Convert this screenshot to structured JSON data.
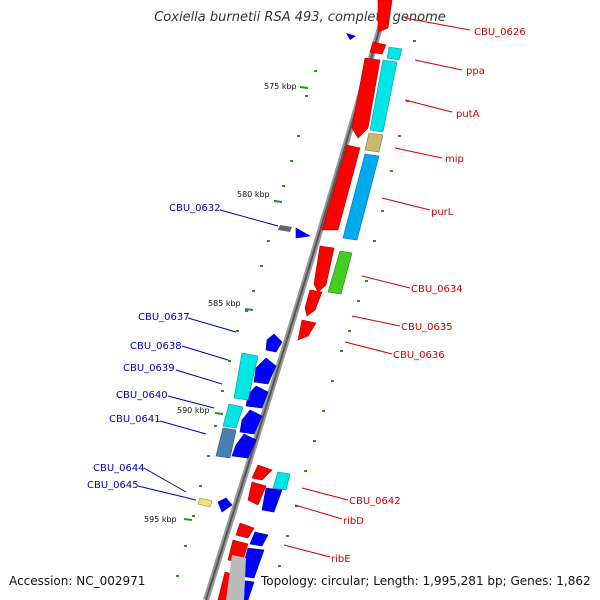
{
  "title": "Coxiella burnetii RSA 493, complete genome",
  "accession": "Accession: NC_002971",
  "topology": "Topology: circular; Length: 1,995,281 bp; Genes: 1,862",
  "ticks": [
    "575 kbp",
    "580 kbp",
    "585 kbp",
    "590 kbp",
    "595 kbp"
  ],
  "right_labels": [
    "CBU_0626",
    "ppa",
    "putA",
    "mip",
    "purL",
    "CBU_0634",
    "CBU_0635",
    "CBU_0636",
    "CBU_0642",
    "ribD",
    "ribE"
  ],
  "left_labels": [
    "CBU_0632",
    "CBU_0637",
    "CBU_0638",
    "CBU_0639",
    "CBU_0640",
    "CBU_0641",
    "CBU_0644",
    "CBU_0645"
  ],
  "colors": {
    "forward_cds": "#ff0000",
    "reverse_cds": "#0000ff",
    "cyan_feature": "#00e5e5",
    "blue_feature": "#00aaee",
    "tan_feature": "#c8b870",
    "green_feature": "#44cc22",
    "tick_green": "#2e8b2e",
    "backbone": "#777777"
  }
}
